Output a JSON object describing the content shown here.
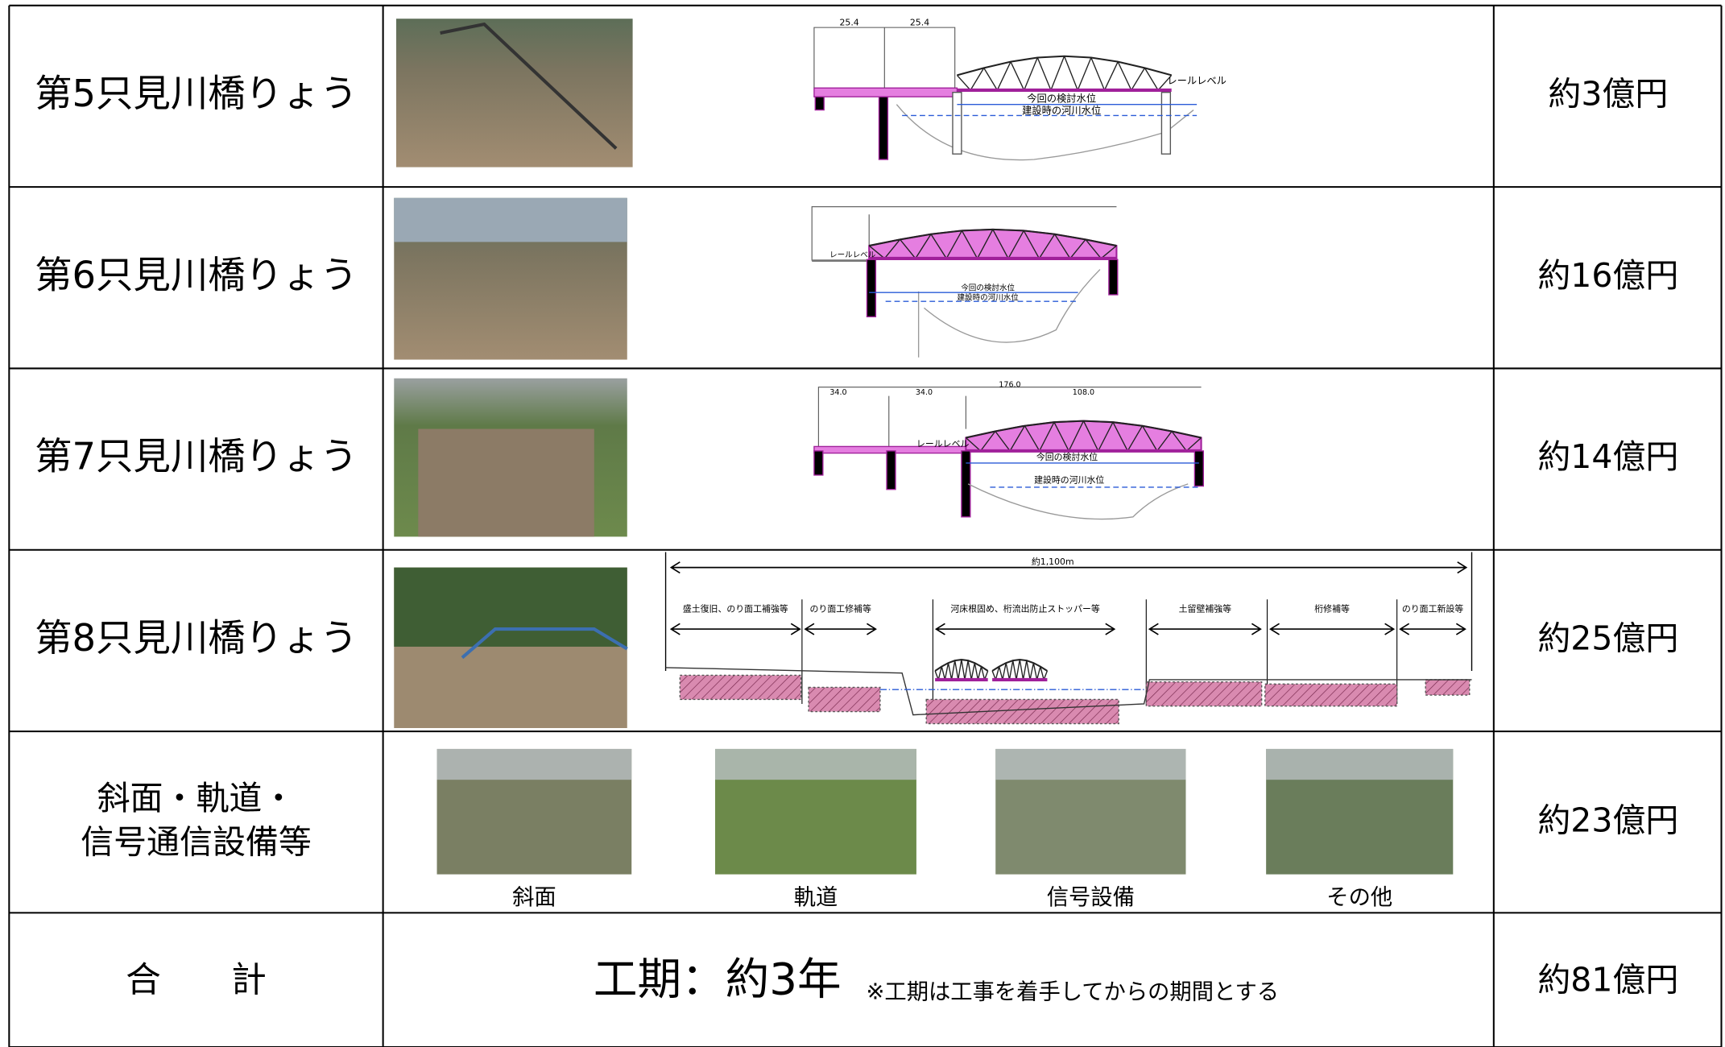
{
  "bridges": [
    {
      "name": "第5只見川橋りょう",
      "cost": "約3億円",
      "labels": [
        "25.4",
        "25.4",
        "レールレベル",
        "今回の検討水位",
        "建設時の河川水位"
      ]
    },
    {
      "name": "第6只見川橋りょう",
      "cost": "約16億円",
      "labels": [
        "レールレベル",
        "今回の検討水位",
        "建設時の河川水位"
      ]
    },
    {
      "name": "第7只見川橋りょう",
      "cost": "約14億円",
      "labels": [
        "176.0",
        "34.0",
        "34.0",
        "108.0",
        "レールレベル",
        "今回の検討水位",
        "建設時の河川水位"
      ]
    },
    {
      "name": "第8只見川橋りょう",
      "cost": "約25億円",
      "total_length": "約1,100m",
      "works": [
        "盛土復旧、のり面工補強等",
        "のり面工修補等",
        "河床根固め、桁流出防止ストッパー等",
        "土留壁補強等",
        "桁修補等",
        "のり面工新設等"
      ]
    }
  ],
  "facilities": {
    "name": [
      "斜面・軌道・",
      "信号通信設備等"
    ],
    "photos": [
      "斜面",
      "軌道",
      "信号設備",
      "その他"
    ],
    "cost": "約23億円"
  },
  "total": {
    "name": "合　　計",
    "period": "工期：約3年",
    "note": "※工期は工事を着手してからの期間とする",
    "cost": "約81億円"
  }
}
